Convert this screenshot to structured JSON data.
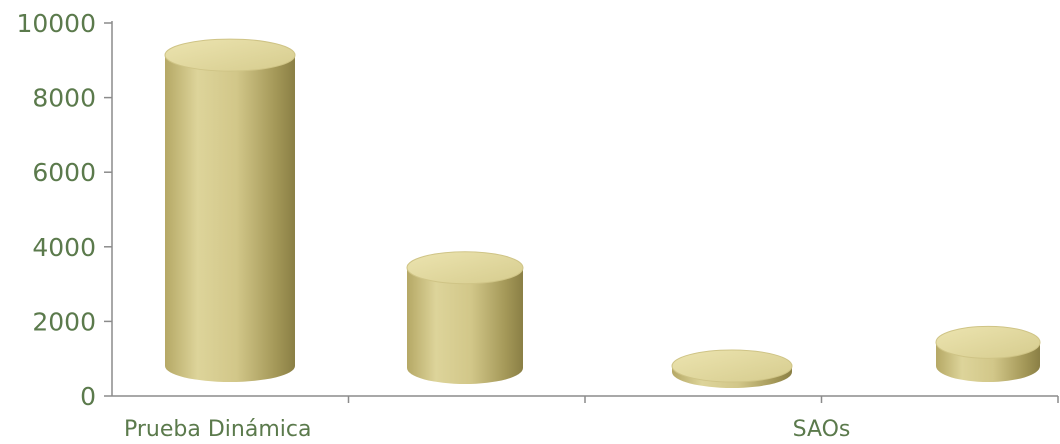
{
  "chart_data": {
    "type": "bar",
    "style": "3d-cylinder",
    "categories": [
      "Prueba Dinámica",
      "",
      "SAOs",
      ""
    ],
    "values": [
      9300,
      3600,
      600,
      1600
    ],
    "ylim": [
      0,
      10000
    ],
    "yticks": [
      0,
      2000,
      4000,
      6000,
      8000,
      10000
    ],
    "title": "",
    "xlabel": "",
    "ylabel": "",
    "grid": false,
    "colors": {
      "bar_light": "#ddd49a",
      "bar_mid": "#c9bd7c",
      "bar_dark": "#8a7f45",
      "bar_top": "#e2d99e",
      "axis": "#8b8b8b",
      "label": "#5b7a4c"
    }
  }
}
